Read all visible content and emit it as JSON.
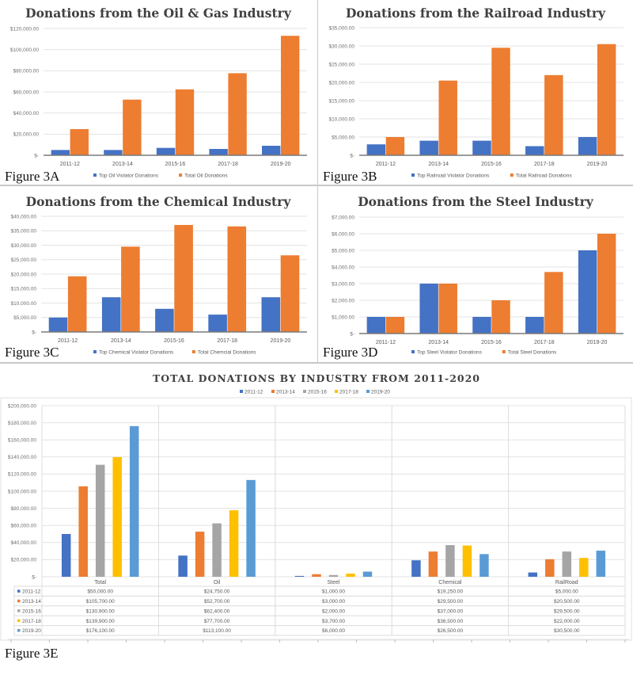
{
  "colors": {
    "violator": "#4472C4",
    "total": "#ED7D31",
    "y2011": "#4472C4",
    "y2013": "#ED7D31",
    "y2015": "#A5A5A5",
    "y2017": "#FFC000",
    "y2019": "#5B9BD5"
  },
  "chart_data": [
    {
      "id": "3A",
      "type": "bar",
      "title": "Donations from the Oil & Gas Industry",
      "figure_label": "Figure 3A",
      "categories": [
        "2011-12",
        "2013-14",
        "2015-16",
        "2017-18",
        "2019-20"
      ],
      "series": [
        {
          "name": "Top Oil Violator Donations",
          "values": [
            5000,
            5000,
            7000,
            6000,
            9000
          ]
        },
        {
          "name": "Total Oil Donations",
          "values": [
            24750,
            52700,
            62400,
            77700,
            113100
          ]
        }
      ],
      "ylim": [
        0,
        120000
      ],
      "yticks": [
        0,
        20000,
        40000,
        60000,
        80000,
        100000,
        120000
      ],
      "ytick_labels": [
        "$-",
        "$20,000.00",
        "$40,000.00",
        "$60,000.00",
        "$80,000.00",
        "$100,000.00",
        "$120,000.00"
      ],
      "legend": "bottom",
      "grid": true
    },
    {
      "id": "3B",
      "type": "bar",
      "title": "Donations from the Railroad Industry",
      "figure_label": "Figure 3B",
      "categories": [
        "2011-12",
        "2013-14",
        "2015-16",
        "2017-18",
        "2019-20"
      ],
      "series": [
        {
          "name": "Top Railroad Violator Donations",
          "values": [
            3000,
            4000,
            4000,
            2500,
            5000
          ]
        },
        {
          "name": "Total Railroad Donations",
          "values": [
            5000,
            20500,
            29500,
            22000,
            30500
          ]
        }
      ],
      "ylim": [
        0,
        35000
      ],
      "yticks": [
        0,
        5000,
        10000,
        15000,
        20000,
        25000,
        30000,
        35000
      ],
      "ytick_labels": [
        "$-",
        "$5,000.00",
        "$10,000.00",
        "$15,000.00",
        "$20,000.00",
        "$25,000.00",
        "$30,000.00",
        "$35,000.00"
      ],
      "legend": "bottom",
      "grid": true
    },
    {
      "id": "3C",
      "type": "bar",
      "title": "Donations from the Chemical Industry",
      "figure_label": "Figure 3C",
      "categories": [
        "2011-12",
        "2013-14",
        "2015-16",
        "2017-18",
        "2019-20"
      ],
      "series": [
        {
          "name": "Top Chemical Violator Donations",
          "values": [
            5000,
            12000,
            8000,
            6000,
            12000
          ]
        },
        {
          "name": "Total Chemcial Donations",
          "values": [
            19250,
            29500,
            37000,
            36500,
            26500
          ]
        }
      ],
      "ylim": [
        0,
        40000
      ],
      "yticks": [
        0,
        5000,
        10000,
        15000,
        20000,
        25000,
        30000,
        35000,
        40000
      ],
      "ytick_labels": [
        "$-",
        "$5,000.00",
        "$10,000.00",
        "$15,000.00",
        "$20,000.00",
        "$25,000.00",
        "$30,000.00",
        "$35,000.00",
        "$40,000.00"
      ],
      "legend": "bottom",
      "grid": true
    },
    {
      "id": "3D",
      "type": "bar",
      "title": "Donations from the Steel Industry",
      "figure_label": "Figure 3D",
      "categories": [
        "2011-12",
        "2013-14",
        "2015-16",
        "2017-18",
        "2019-20"
      ],
      "series": [
        {
          "name": "Top Steel Violator Donations",
          "values": [
            1000,
            3000,
            1000,
            1000,
            5000
          ]
        },
        {
          "name": "Total Steel Donations",
          "values": [
            1000,
            3000,
            2000,
            3700,
            6000
          ]
        }
      ],
      "ylim": [
        0,
        7000
      ],
      "yticks": [
        0,
        1000,
        2000,
        3000,
        4000,
        5000,
        6000,
        7000
      ],
      "ytick_labels": [
        "$-",
        "$1,000.00",
        "$2,000.00",
        "$3,000.00",
        "$4,000.00",
        "$5,000.00",
        "$6,000.00",
        "$7,000.00"
      ],
      "legend": "bottom",
      "grid": true
    },
    {
      "id": "3E",
      "type": "bar",
      "title": "TOTAL DONATIONS BY INDUSTRY FROM 2011-2020",
      "figure_label": "Figure 3E",
      "categories": [
        "Total",
        "Oil",
        "Steel",
        "Chemical",
        "RailRoad"
      ],
      "series": [
        {
          "name": "2011-12",
          "values": [
            50000,
            24750,
            1000,
            19250,
            5000
          ],
          "labels": [
            "$50,000.00",
            "$24,750.00",
            "$1,000.00",
            "$19,250.00",
            "$5,000.00"
          ]
        },
        {
          "name": "2013-14",
          "values": [
            105700,
            52700,
            3000,
            29500,
            20500
          ],
          "labels": [
            "$105,700.00",
            "$52,700.00",
            "$3,000.00",
            "$29,500.00",
            "$20,500.00"
          ]
        },
        {
          "name": "2015-16",
          "values": [
            130900,
            62400,
            2000,
            37000,
            29500
          ],
          "labels": [
            "$130,900.00",
            "$62,400.00",
            "$2,000.00",
            "$37,000.00",
            "$29,500.00"
          ]
        },
        {
          "name": "2017-18",
          "values": [
            139900,
            77700,
            3700,
            36500,
            22000
          ],
          "labels": [
            "$139,900.00",
            "$77,700.00",
            "$3,700.00",
            "$36,500.00",
            "$22,000.00"
          ]
        },
        {
          "name": "2019-20",
          "values": [
            176100,
            113100,
            6000,
            26500,
            30500
          ],
          "labels": [
            "$176,100.00",
            "$113,100.00",
            "$6,000.00",
            "$26,500.00",
            "$30,500.00"
          ]
        }
      ],
      "ylim": [
        0,
        200000
      ],
      "yticks": [
        0,
        20000,
        40000,
        60000,
        80000,
        100000,
        120000,
        140000,
        160000,
        180000,
        200000
      ],
      "ytick_labels": [
        "$-",
        "$20,000.00",
        "$40,000.00",
        "$60,000.00",
        "$80,000.00",
        "$100,000.00",
        "$120,000.00",
        "$140,000.00",
        "$160,000.00",
        "$180,000.00",
        "$200,000.00"
      ],
      "legend": "top",
      "grid": true,
      "data_table": true
    }
  ]
}
